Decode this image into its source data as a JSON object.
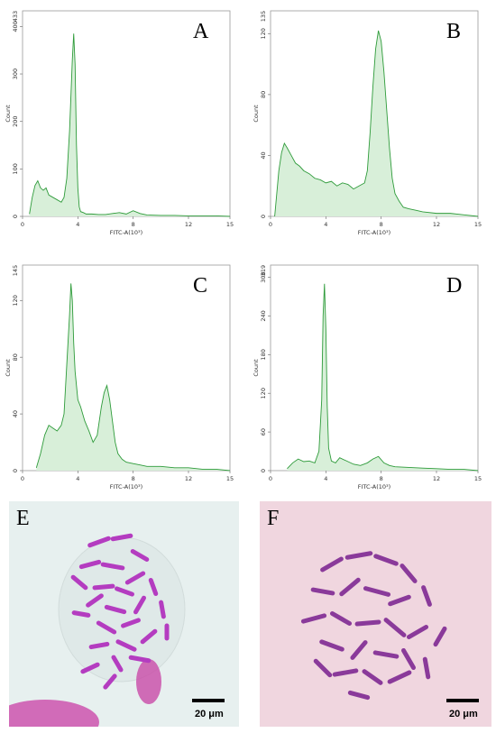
{
  "chart_data": [
    {
      "type": "area",
      "panel_label": "A",
      "ylabel": "Count",
      "xlabel": "FITC-A(10³)",
      "xlim": [
        0,
        15
      ],
      "ylim": [
        0,
        433
      ],
      "y_max_label": "433",
      "xticks": [
        "0",
        "4",
        "8",
        "12",
        "15"
      ],
      "yticks": [
        "0",
        "100",
        "200",
        "300",
        "400"
      ],
      "ytick_values": [
        0,
        100,
        200,
        300,
        400
      ],
      "xtick_values": [
        0,
        4,
        8,
        12,
        15
      ],
      "series": [
        {
          "color": "#2e9b3a",
          "fill": "#d8efd9",
          "x": [
            0.5,
            0.7,
            0.9,
            1.1,
            1.3,
            1.5,
            1.7,
            1.9,
            2.2,
            2.5,
            2.8,
            3.0,
            3.2,
            3.4,
            3.6,
            3.7,
            3.8,
            3.9,
            4.0,
            4.1,
            4.2,
            4.4,
            4.6,
            5.0,
            5.5,
            6.0,
            6.5,
            7.0,
            7.5,
            8.0,
            8.5,
            9.0,
            10.0,
            11.0,
            12.0,
            13.0,
            14.0,
            15.0
          ],
          "y": [
            5,
            40,
            65,
            75,
            60,
            55,
            60,
            45,
            40,
            35,
            30,
            40,
            80,
            180,
            330,
            385,
            320,
            150,
            60,
            20,
            10,
            8,
            5,
            5,
            4,
            4,
            6,
            8,
            5,
            12,
            6,
            3,
            2,
            2,
            1,
            1,
            1,
            0
          ]
        }
      ]
    },
    {
      "type": "area",
      "panel_label": "B",
      "ylabel": "Count",
      "xlabel": "FITC-A(10³)",
      "xlim": [
        0,
        15
      ],
      "ylim": [
        0,
        135
      ],
      "y_max_label": "135",
      "xticks": [
        "0",
        "4",
        "8",
        "12",
        "15"
      ],
      "yticks": [
        "0",
        "40",
        "80",
        "120"
      ],
      "ytick_values": [
        0,
        40,
        80,
        120
      ],
      "xtick_values": [
        0,
        4,
        8,
        12,
        15
      ],
      "series": [
        {
          "color": "#2e9b3a",
          "fill": "#d8efd9",
          "x": [
            0.3,
            0.6,
            0.8,
            1.0,
            1.2,
            1.5,
            1.8,
            2.1,
            2.4,
            2.8,
            3.2,
            3.6,
            4.0,
            4.4,
            4.8,
            5.2,
            5.6,
            6.0,
            6.4,
            6.8,
            7.0,
            7.2,
            7.4,
            7.6,
            7.8,
            8.0,
            8.2,
            8.4,
            8.6,
            8.8,
            9.0,
            9.3,
            9.6,
            10.0,
            10.5,
            11.0,
            12.0,
            13.0,
            14.0,
            15.0
          ],
          "y": [
            0,
            30,
            42,
            48,
            45,
            40,
            35,
            33,
            30,
            28,
            25,
            24,
            22,
            23,
            20,
            22,
            21,
            18,
            20,
            22,
            30,
            55,
            85,
            110,
            122,
            115,
            95,
            70,
            45,
            25,
            15,
            10,
            6,
            5,
            4,
            3,
            2,
            2,
            1,
            0
          ]
        }
      ]
    },
    {
      "type": "area",
      "panel_label": "C",
      "ylabel": "Count",
      "xlabel": "FITC-A(10³)",
      "xlim": [
        0,
        15
      ],
      "ylim": [
        0,
        145
      ],
      "y_max_label": "145",
      "xticks": [
        "0",
        "4",
        "8",
        "12",
        "15"
      ],
      "yticks": [
        "0",
        "40",
        "80",
        "120"
      ],
      "ytick_values": [
        0,
        40,
        80,
        120
      ],
      "xtick_values": [
        0,
        4,
        8,
        12,
        15
      ],
      "series": [
        {
          "color": "#2e9b3a",
          "fill": "#d8efd9",
          "x": [
            1.0,
            1.3,
            1.6,
            1.9,
            2.2,
            2.5,
            2.8,
            3.0,
            3.2,
            3.4,
            3.5,
            3.6,
            3.7,
            3.8,
            3.9,
            4.0,
            4.2,
            4.5,
            4.8,
            5.1,
            5.4,
            5.7,
            5.9,
            6.1,
            6.3,
            6.5,
            6.7,
            6.9,
            7.2,
            7.5,
            8.0,
            8.5,
            9.0,
            10.0,
            11.0,
            12.0,
            13.0,
            14.0,
            15.0
          ],
          "y": [
            2,
            12,
            25,
            32,
            30,
            28,
            32,
            40,
            75,
            110,
            132,
            120,
            90,
            70,
            60,
            50,
            45,
            35,
            28,
            20,
            25,
            45,
            55,
            60,
            50,
            35,
            20,
            12,
            8,
            6,
            5,
            4,
            3,
            3,
            2,
            2,
            1,
            1,
            0
          ]
        }
      ]
    },
    {
      "type": "area",
      "panel_label": "D",
      "ylabel": "Count",
      "xlabel": "FITC-A(10³)",
      "xlim": [
        0,
        15
      ],
      "ylim": [
        0,
        319
      ],
      "y_max_label": "319",
      "xticks": [
        "0",
        "4",
        "8",
        "12",
        "15"
      ],
      "yticks": [
        "0",
        "60",
        "120",
        "180",
        "240",
        "300"
      ],
      "ytick_values": [
        0,
        60,
        120,
        180,
        240,
        300
      ],
      "xtick_values": [
        0,
        4,
        8,
        12,
        15
      ],
      "series": [
        {
          "color": "#2e9b3a",
          "fill": "#d8efd9",
          "x": [
            1.2,
            1.6,
            2.0,
            2.4,
            2.8,
            3.2,
            3.5,
            3.7,
            3.8,
            3.9,
            4.0,
            4.1,
            4.2,
            4.4,
            4.7,
            5.0,
            5.5,
            6.0,
            6.5,
            7.0,
            7.4,
            7.8,
            8.2,
            8.6,
            9.0,
            10.0,
            11.0,
            12.0,
            13.0,
            14.0,
            15.0
          ],
          "y": [
            3,
            12,
            18,
            14,
            15,
            12,
            30,
            110,
            240,
            290,
            220,
            100,
            35,
            15,
            12,
            20,
            15,
            10,
            8,
            12,
            18,
            22,
            12,
            8,
            6,
            5,
            4,
            3,
            2,
            2,
            0
          ]
        }
      ]
    }
  ],
  "micrographs": [
    {
      "label": "E",
      "scale_text": "20 μm",
      "background": "#e7f0ef",
      "chromosome_color": "#b43cc0"
    },
    {
      "label": "F",
      "scale_text": "20 μm",
      "background": "#f0d6df",
      "chromosome_color": "#8a3a9a"
    }
  ]
}
